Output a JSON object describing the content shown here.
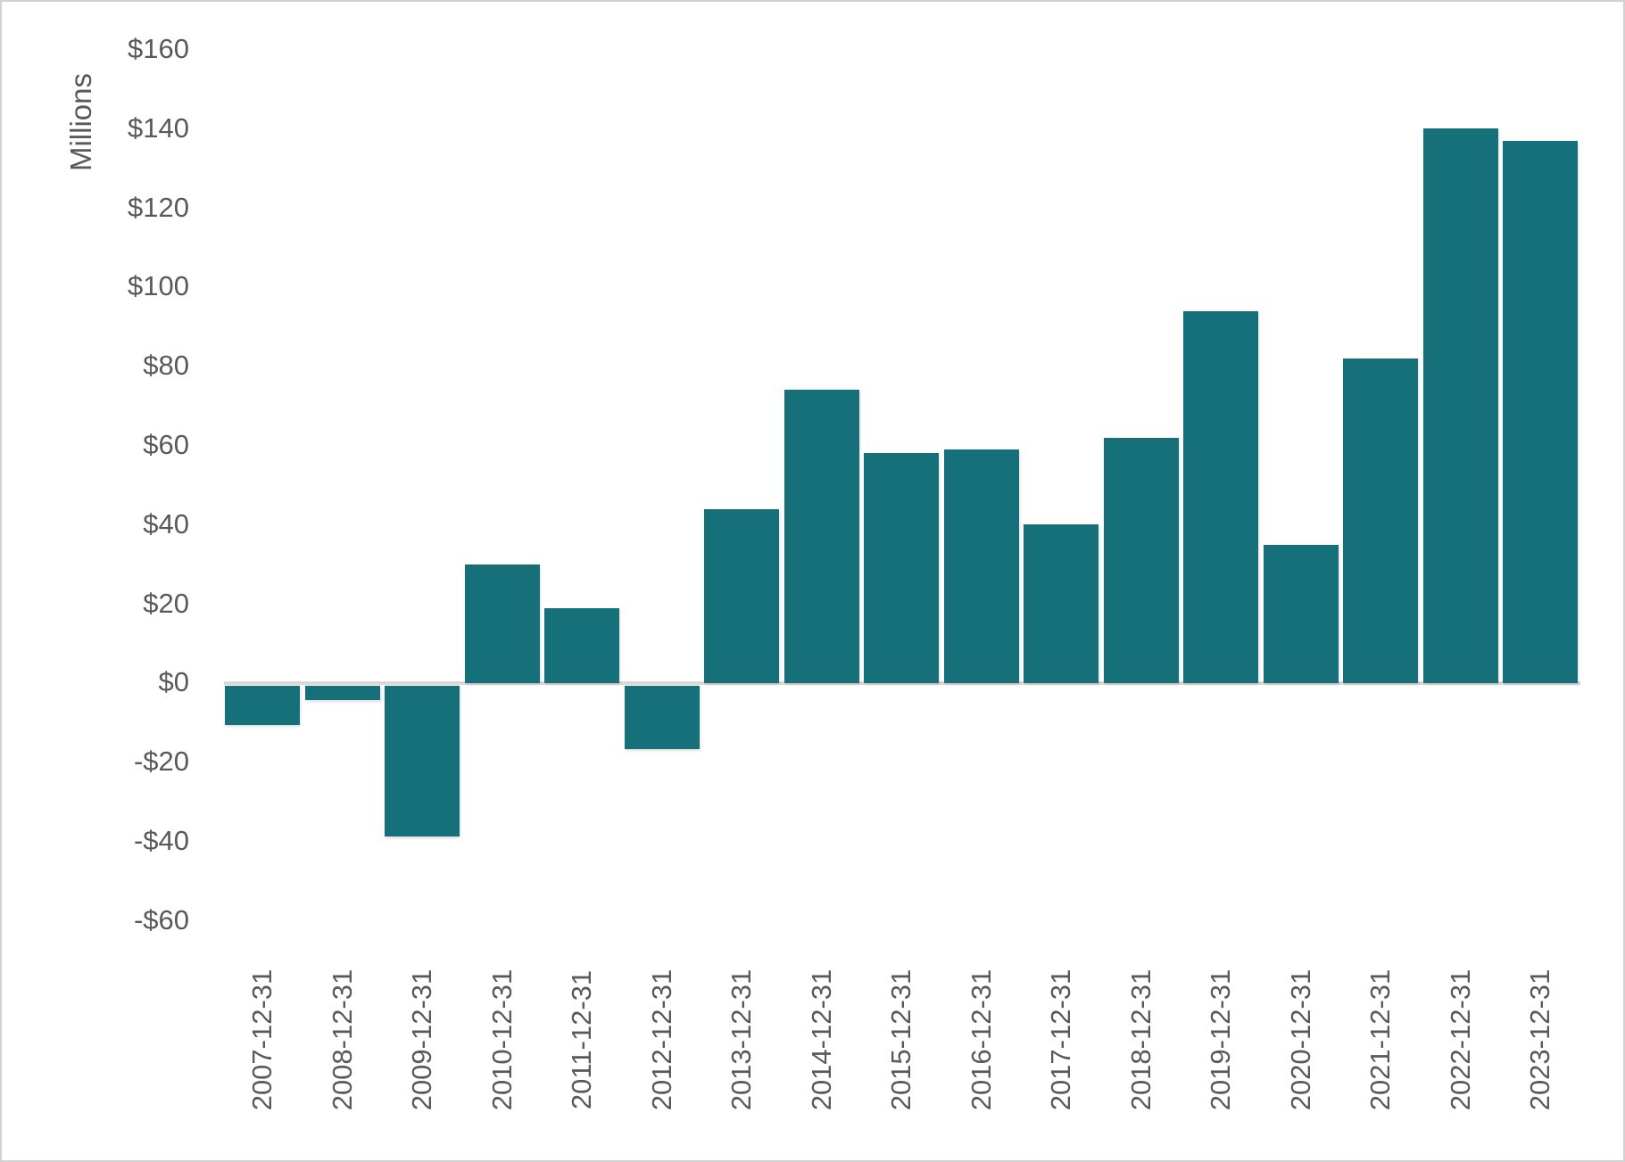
{
  "chart_data": {
    "type": "bar",
    "title": "",
    "ylabel": "Millions",
    "categories": [
      "2007-12-31",
      "2008-12-31",
      "2009-12-31",
      "2010-12-31",
      "2011-12-31",
      "2012-12-31",
      "2013-12-31",
      "2014-12-31",
      "2015-12-31",
      "2016-12-31",
      "2017-12-31",
      "2018-12-31",
      "2019-12-31",
      "2020-12-31",
      "2021-12-31",
      "2022-12-31",
      "2023-12-31"
    ],
    "values": [
      -10,
      -3.5,
      -38,
      30,
      19,
      -16,
      44,
      74,
      58,
      59,
      40,
      62,
      94,
      35,
      82,
      140,
      137
    ],
    "y_ticks": [
      160,
      140,
      120,
      100,
      80,
      60,
      40,
      20,
      0,
      -20,
      -40,
      -60
    ],
    "y_tick_labels": [
      "$160",
      "$140",
      "$120",
      "$100",
      "$80",
      "$60",
      "$40",
      "$20",
      "$0",
      "-$20",
      "-$40",
      "-$60"
    ],
    "ylim": [
      -60,
      160
    ],
    "grid": false,
    "legend_position": "none",
    "bar_color": "#16707a",
    "axis_text_color": "#595959",
    "zero_line_color": "#d9d9d9"
  }
}
